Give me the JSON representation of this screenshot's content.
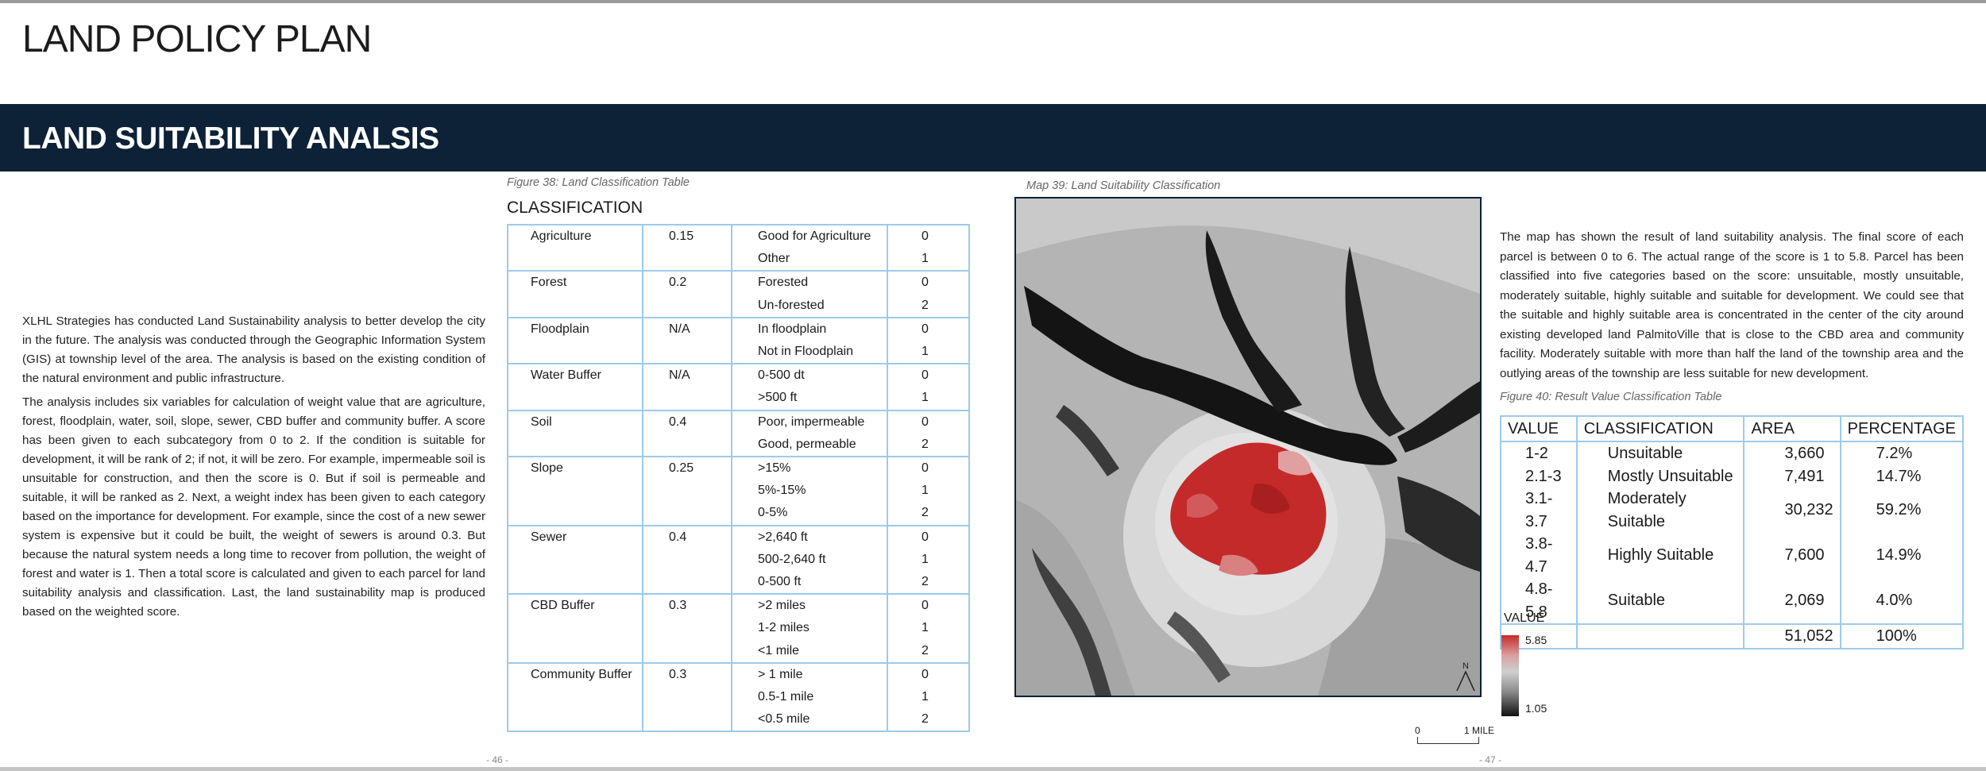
{
  "header": {
    "title": "LAND POLICY PLAN"
  },
  "banner": {
    "title": "LAND SUITABILITY ANALSIS"
  },
  "intro": {
    "paragraphs": [
      "XLHL Strategies has conducted Land Sustainability analysis to better develop the city in the future.  The analysis was conducted through the Geographic Information System (GIS) at township level of the area. The analysis is based on the existing condition of the natural environment and public infrastructure.",
      "The analysis includes six variables for calculation of weight value that are agriculture, forest, floodplain, water, soil, slope, sewer, CBD buffer and community buffer. A score has been given to each subcategory from 0 to 2. If the condition is suitable for development, it will be rank of 2; if not, it will be zero. For example, impermeable soil is unsuitable for construction, and then the score is 0. But if soil is permeable and suitable, it will be ranked as 2. Next, a weight index has been given to each category based on the importance for development. For example, since the cost of a new sewer system is expensive but it could be built, the weight of sewers is around 0.3. But because the natural system needs a long time to recover from pollution, the weight of forest and water is 1. Then a total score is calculated and given to each parcel for land suitability analysis and classification. Last, the land sustainability map is produced based on the weighted score."
    ]
  },
  "figure38": {
    "caption": "Figure 38: Land Classification Table",
    "heading": "CLASSIFICATION",
    "groups": [
      {
        "name": "Agriculture",
        "weight": "0.15",
        "rows": [
          {
            "label": "Good for Agriculture",
            "score": "0"
          },
          {
            "label": "Other",
            "score": "1"
          }
        ]
      },
      {
        "name": "Forest",
        "weight": "0.2",
        "rows": [
          {
            "label": "Forested",
            "score": "0"
          },
          {
            "label": "Un-forested",
            "score": "2"
          }
        ]
      },
      {
        "name": "Floodplain",
        "weight": "N/A",
        "rows": [
          {
            "label": "In floodplain",
            "score": "0"
          },
          {
            "label": "Not in Floodplain",
            "score": "1"
          }
        ]
      },
      {
        "name": "Water Buffer",
        "weight": "N/A",
        "rows": [
          {
            "label": "0-500 dt",
            "score": "0"
          },
          {
            "label": ">500 ft",
            "score": "1"
          }
        ]
      },
      {
        "name": "Soil",
        "weight": "0.4",
        "rows": [
          {
            "label": "Poor, impermeable",
            "score": "0"
          },
          {
            "label": "Good, permeable",
            "score": "2"
          }
        ]
      },
      {
        "name": "Slope",
        "weight": "0.25",
        "rows": [
          {
            "label": ">15%",
            "score": "0"
          },
          {
            "label": "5%-15%",
            "score": "1"
          },
          {
            "label": "0-5%",
            "score": "2"
          }
        ]
      },
      {
        "name": "Sewer",
        "weight": "0.4",
        "rows": [
          {
            "label": ">2,640 ft",
            "score": "0"
          },
          {
            "label": "500-2,640 ft",
            "score": "1"
          },
          {
            "label": "0-500 ft",
            "score": "2"
          }
        ]
      },
      {
        "name": "CBD Buffer",
        "weight": "0.3",
        "rows": [
          {
            "label": ">2 miles",
            "score": "0"
          },
          {
            "label": "1-2 miles",
            "score": "1"
          },
          {
            "label": "<1 mile",
            "score": "2"
          }
        ]
      },
      {
        "name": "Community Buffer",
        "weight": "0.3",
        "rows": [
          {
            "label": "> 1 mile",
            "score": "0"
          },
          {
            "label": "0.5-1 mile",
            "score": "1"
          },
          {
            "label": "<0.5 mile",
            "score": "2"
          }
        ]
      }
    ]
  },
  "map39": {
    "caption": "Map 39: Land Suitability Classification",
    "north_label": "N",
    "scale": {
      "start": "0",
      "end": "1 MILE"
    },
    "colors": {
      "high": "#c82828",
      "mid": "#cfcfcf",
      "low": "#111111"
    }
  },
  "right_text": "The map has shown the result of land suitability analysis. The final score of each parcel is between 0 to 6. The actual range of the score is 1 to 5.8. Parcel has been classified into five categories based on the score: unsuitable, mostly unsuitable, moderately suitable, highly suitable and suitable for development. We could see that the suitable and highly suitable area is concentrated in the center of the city around existing developed land PalmitoVille that is close to the CBD area and community facility. Moderately suitable with more than half the land of the township area and the outlying areas of the township are less suitable for new development.",
  "figure40": {
    "caption": "Figure 40: Result Value Classification Table",
    "headers": [
      "VALUE",
      "CLASSIFICATION",
      "AREA",
      "PERCENTAGE"
    ],
    "rows": [
      {
        "value": "1-2",
        "classification": "Unsuitable",
        "area": "3,660",
        "percentage": "7.2%"
      },
      {
        "value": "2.1-3",
        "classification": "Mostly Unsuitable",
        "area": "7,491",
        "percentage": "14.7%"
      },
      {
        "value": "3.1-3.7",
        "classification": "Moderately Suitable",
        "area": "30,232",
        "percentage": "59.2%"
      },
      {
        "value": "3.8-4.7",
        "classification": "Highly Suitable",
        "area": "7,600",
        "percentage": "14.9%"
      },
      {
        "value": "4.8-5.8",
        "classification": "Suitable",
        "area": "2,069",
        "percentage": "4.0%"
      }
    ],
    "total": {
      "area": "51,052",
      "percentage": "100%"
    }
  },
  "legend": {
    "title": "VALUE",
    "max": "5.85",
    "min": "1.05"
  },
  "pages": {
    "left": "- 46 -",
    "right": "- 47 -"
  }
}
